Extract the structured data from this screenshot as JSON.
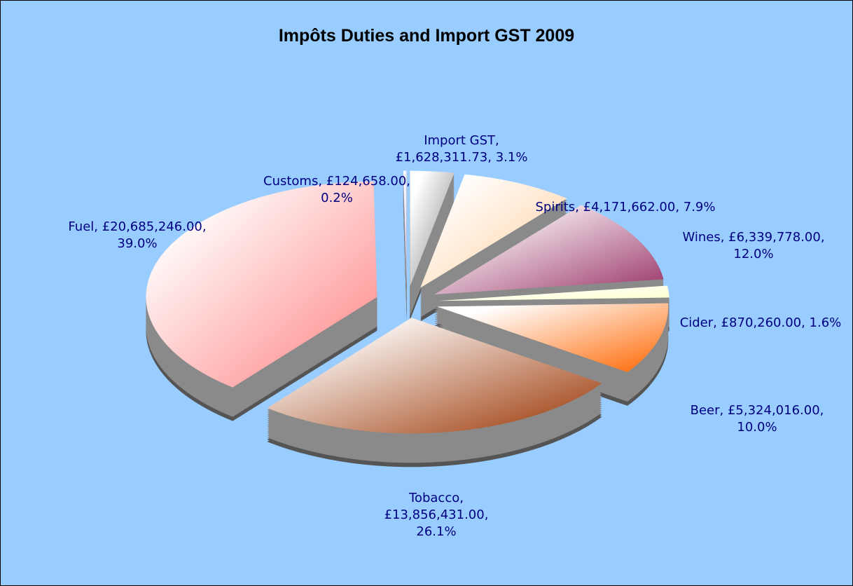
{
  "chart_data": {
    "type": "pie",
    "title": "Impôts Duties and Import GST 2009",
    "categories": [
      "Import GST",
      "Spirits",
      "Wines",
      "Cider",
      "Beer",
      "Tobacco",
      "Fuel",
      "Customs"
    ],
    "values": [
      1628311.73,
      4171662,
      6339778,
      870260,
      5324016,
      13856431,
      20685246,
      124658
    ],
    "value_labels": [
      "Import GST, £1,628,311.73, 3.1%",
      "Spirits, £4,171,662.00, 7.9%",
      "Wines, £6,339,778.00, 12.0%",
      "Cider, £870,260.00, 1.6%",
      "Beer, £5,324,016.00, 10.0%",
      "Tobacco, £13,856,431.00, 26.1%",
      "Fuel, £20,685,246.00, 39.0%",
      "Customs, £124,658.00, 0.2%"
    ],
    "colors": [
      "#808080",
      "#ffcc99",
      "#993366",
      "#ffffcc",
      "#ff6600",
      "#993300",
      "#ff8080",
      "#ccccff"
    ]
  }
}
